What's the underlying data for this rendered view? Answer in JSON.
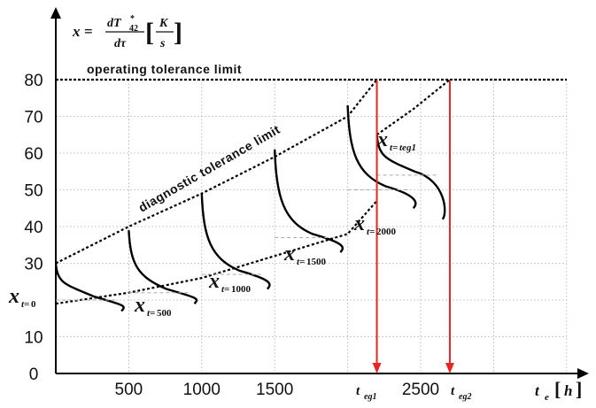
{
  "chart_data": {
    "type": "line",
    "x_unit": "h",
    "xticks": [
      "500",
      "1000",
      "1500",
      "2500"
    ],
    "yticks": [
      "0",
      "10",
      "30",
      "40",
      "50",
      "60",
      "70",
      "80"
    ],
    "xlim": [
      0,
      3500
    ],
    "ylim": [
      0,
      80
    ],
    "operating_limit_value": 80,
    "operating_limit_label": "operating tolerance limit",
    "diagnostic_limit_label": "diagnostic tolerance limit",
    "lower_trend_x": [
      0,
      500,
      1000,
      1500,
      2000,
      2200
    ],
    "lower_trend_y": [
      19,
      22,
      26,
      32,
      38,
      47
    ],
    "upper_trend_x": [
      0,
      500,
      1000,
      1500,
      2000,
      2200
    ],
    "upper_trend_y": [
      30,
      40,
      49,
      59,
      70,
      80
    ],
    "branch_trend_x": [
      2200,
      2450,
      2700
    ],
    "branch_trend_y": [
      65,
      72,
      80
    ],
    "distributions": [
      {
        "t": 0,
        "top": 30,
        "mean": 20,
        "bottom": 17
      },
      {
        "t": 500,
        "top": 39,
        "mean": 22,
        "bottom": 19
      },
      {
        "t": 1000,
        "top": 49,
        "mean": 27,
        "bottom": 23
      },
      {
        "t": 1500,
        "top": 61,
        "mean": 37,
        "bottom": 33
      },
      {
        "t": 2000,
        "top": 73,
        "mean": 50,
        "bottom": 45
      },
      {
        "t": 2200,
        "top": 65,
        "mean": 54,
        "bottom": 42
      }
    ],
    "t_eg1": 2200,
    "t_eg2": 2700,
    "x_marks": [
      "0",
      "500",
      "1000",
      "1500",
      "2000",
      "teg1"
    ],
    "formula": {
      "lhs": "x",
      "eq": "=",
      "num": "dT",
      "num_sub": "42",
      "num_sup": "*",
      "den": "dτ",
      "unit_num": "K",
      "unit_den": "s"
    },
    "axis_x_label": "t",
    "axis_x_sub": "e",
    "axis_x_unit": "h",
    "teg1_label": "t",
    "teg1_sub": "eg1",
    "teg2_label": "t",
    "teg2_sub": "eg2",
    "xt_letter": "x",
    "xt_prefix": "t=",
    "colors": {
      "arrow": "#e8261f",
      "curve": "#000000",
      "grid": "#bdbdbd",
      "dash_grey": "#aaaaaa"
    }
  }
}
